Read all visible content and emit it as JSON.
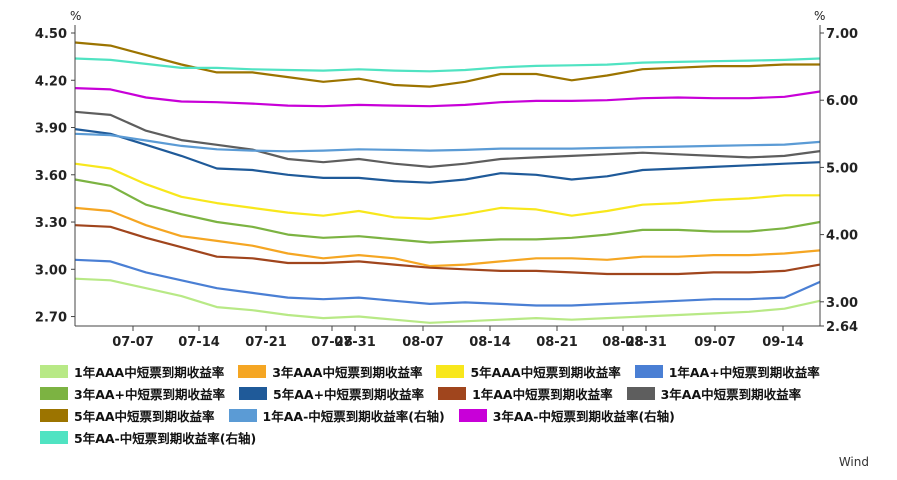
{
  "chart_data": {
    "type": "line",
    "y_unit_left": "%",
    "y_unit_right": "%",
    "ylim_left": [
      2.64,
      4.5
    ],
    "ylim_right": [
      2.64,
      7.0
    ],
    "yticks_left": [
      "4.50",
      "4.20",
      "3.90",
      "3.60",
      "3.30",
      "3.00",
      "2.70"
    ],
    "yticks_right": [
      "7.00",
      "6.00",
      "5.00",
      "4.00",
      "3.00",
      "2.64"
    ],
    "xticks": [
      "07-07",
      "07-14",
      "07-21",
      "07-28",
      "07-31",
      "08-07",
      "08-14",
      "08-21",
      "08-28",
      "08-31",
      "09-07",
      "09-14"
    ],
    "source": "Wind",
    "series": [
      {
        "name": "1年AAA中短票到期收益率",
        "axis": "left",
        "color": "#b8e986",
        "values": [
          2.94,
          2.93,
          2.88,
          2.83,
          2.76,
          2.74,
          2.71,
          2.69,
          2.7,
          2.68,
          2.66,
          2.67,
          2.68,
          2.69,
          2.68,
          2.69,
          2.7,
          2.71,
          2.72,
          2.73,
          2.75,
          2.8
        ]
      },
      {
        "name": "3年AAA中短票到期收益率",
        "axis": "left",
        "color": "#f5a623",
        "values": [
          3.39,
          3.37,
          3.28,
          3.21,
          3.18,
          3.15,
          3.1,
          3.07,
          3.09,
          3.07,
          3.02,
          3.03,
          3.05,
          3.07,
          3.07,
          3.06,
          3.08,
          3.08,
          3.09,
          3.09,
          3.1,
          3.12
        ]
      },
      {
        "name": "5年AAA中短票到期收益率",
        "axis": "left",
        "color": "#f8e71c",
        "values": [
          3.67,
          3.64,
          3.54,
          3.46,
          3.42,
          3.39,
          3.36,
          3.34,
          3.37,
          3.33,
          3.32,
          3.35,
          3.39,
          3.38,
          3.34,
          3.37,
          3.41,
          3.42,
          3.44,
          3.45,
          3.47,
          3.47
        ]
      },
      {
        "name": "1年AA+中短票到期收益率",
        "axis": "left",
        "color": "#4a7fd4",
        "values": [
          3.06,
          3.05,
          2.98,
          2.93,
          2.88,
          2.85,
          2.82,
          2.81,
          2.82,
          2.8,
          2.78,
          2.79,
          2.78,
          2.77,
          2.77,
          2.78,
          2.79,
          2.8,
          2.81,
          2.81,
          2.82,
          2.92
        ]
      },
      {
        "name": "3年AA+中短票到期收益率",
        "axis": "left",
        "color": "#7cb342",
        "values": [
          3.57,
          3.53,
          3.41,
          3.35,
          3.3,
          3.27,
          3.22,
          3.2,
          3.21,
          3.19,
          3.17,
          3.18,
          3.19,
          3.19,
          3.2,
          3.22,
          3.25,
          3.25,
          3.24,
          3.24,
          3.26,
          3.3
        ]
      },
      {
        "name": "5年AA+中短票到期收益率",
        "axis": "left",
        "color": "#1f5a99",
        "values": [
          3.89,
          3.86,
          3.79,
          3.72,
          3.64,
          3.63,
          3.6,
          3.58,
          3.58,
          3.56,
          3.55,
          3.57,
          3.61,
          3.6,
          3.57,
          3.59,
          3.63,
          3.64,
          3.65,
          3.66,
          3.67,
          3.68
        ]
      },
      {
        "name": "1年AA中短票到期收益率",
        "axis": "left",
        "color": "#a0451d",
        "values": [
          3.28,
          3.27,
          3.2,
          3.14,
          3.08,
          3.07,
          3.04,
          3.04,
          3.05,
          3.03,
          3.01,
          3.0,
          2.99,
          2.99,
          2.98,
          2.97,
          2.97,
          2.97,
          2.98,
          2.98,
          2.99,
          3.03
        ]
      },
      {
        "name": "3年AA中短票到期收益率",
        "axis": "left",
        "color": "#5e5e5e",
        "values": [
          4.0,
          3.98,
          3.88,
          3.82,
          3.79,
          3.76,
          3.7,
          3.68,
          3.7,
          3.67,
          3.65,
          3.67,
          3.7,
          3.71,
          3.72,
          3.73,
          3.74,
          3.73,
          3.72,
          3.71,
          3.72,
          3.75
        ]
      },
      {
        "name": "5年AA中短票到期收益率",
        "axis": "left",
        "color": "#9c7400",
        "values": [
          4.44,
          4.42,
          4.36,
          4.3,
          4.25,
          4.25,
          4.22,
          4.19,
          4.21,
          4.17,
          4.16,
          4.19,
          4.24,
          4.24,
          4.2,
          4.23,
          4.27,
          4.28,
          4.29,
          4.29,
          4.3,
          4.3
        ]
      },
      {
        "name": "1年AA-中短票到期收益率(右轴)",
        "axis": "right",
        "color": "#5b9bd5",
        "values": [
          5.5,
          5.48,
          5.4,
          5.32,
          5.27,
          5.25,
          5.24,
          5.25,
          5.27,
          5.26,
          5.25,
          5.26,
          5.28,
          5.28,
          5.28,
          5.29,
          5.3,
          5.31,
          5.32,
          5.33,
          5.34,
          5.38
        ]
      },
      {
        "name": "3年AA-中短票到期收益率(右轴)",
        "axis": "right",
        "color": "#c800d8",
        "values": [
          6.18,
          6.16,
          6.04,
          5.98,
          5.97,
          5.95,
          5.92,
          5.91,
          5.93,
          5.92,
          5.91,
          5.93,
          5.97,
          5.99,
          5.99,
          6.0,
          6.03,
          6.04,
          6.03,
          6.03,
          6.05,
          6.13
        ]
      },
      {
        "name": "5年AA-中短票到期收益率(右轴)",
        "axis": "right",
        "color": "#50e3c2",
        "values": [
          6.62,
          6.6,
          6.54,
          6.48,
          6.48,
          6.46,
          6.45,
          6.44,
          6.46,
          6.44,
          6.43,
          6.45,
          6.49,
          6.51,
          6.52,
          6.53,
          6.56,
          6.57,
          6.58,
          6.59,
          6.6,
          6.62
        ]
      }
    ]
  }
}
